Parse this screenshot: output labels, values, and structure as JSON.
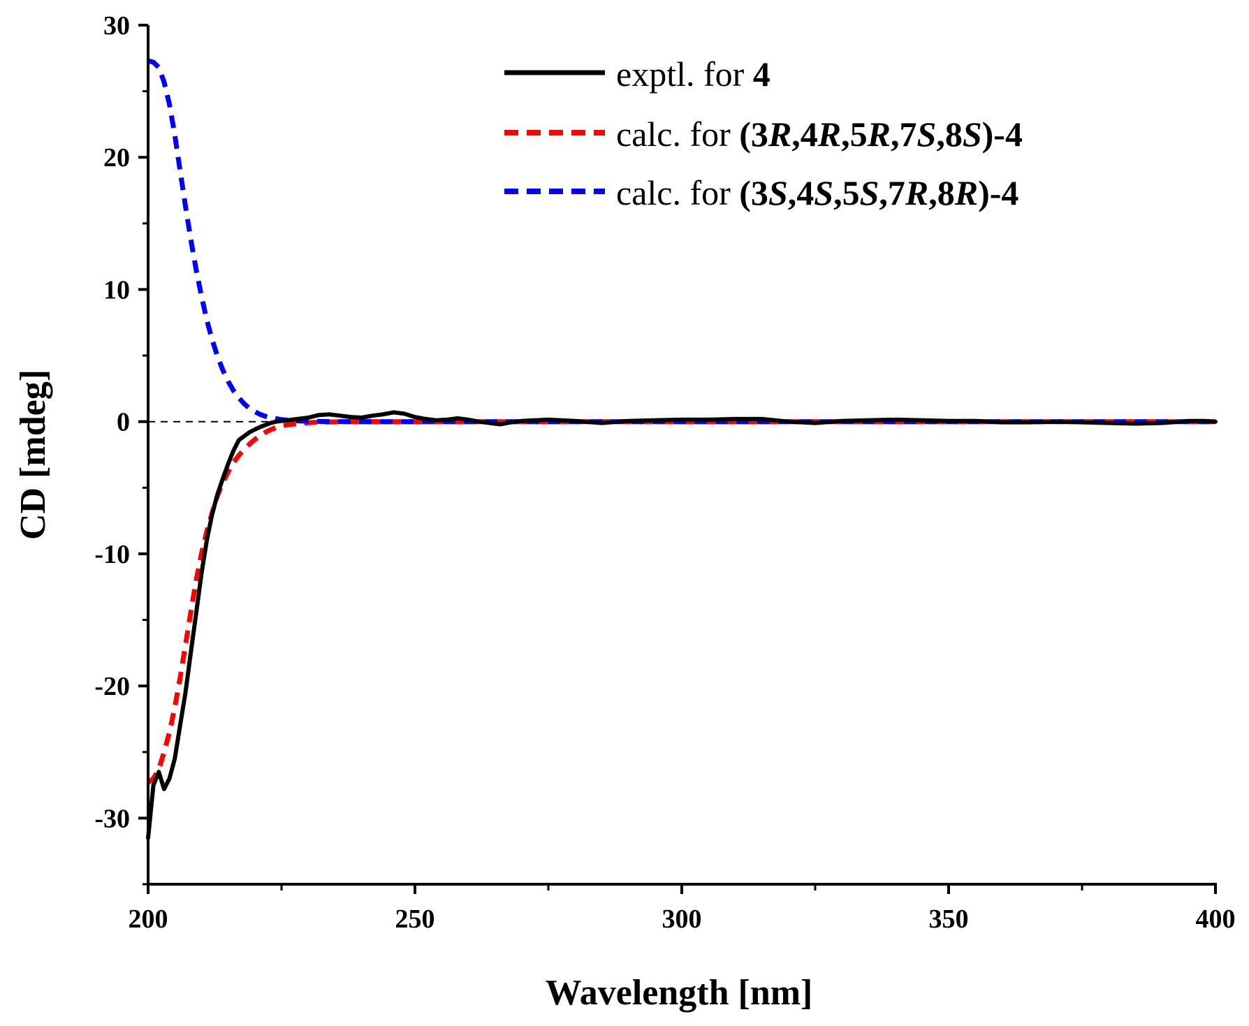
{
  "chart_data": {
    "type": "line",
    "xlabel": "Wavelength [nm]",
    "ylabel": "CD [mdeg]",
    "xlim": [
      200,
      400
    ],
    "ylim": [
      -35,
      30
    ],
    "xticks": [
      200,
      250,
      300,
      350,
      400
    ],
    "yticks": [
      30,
      20,
      10,
      0,
      -10,
      -20,
      -30
    ],
    "zero_line": "dashed",
    "legend_position": "top-right",
    "series": [
      {
        "name": "exptl. for 4",
        "legend": [
          {
            "t": "exptl. for ",
            "s": "n"
          },
          {
            "t": "4",
            "s": "b"
          }
        ],
        "color": "#000000",
        "style": "solid",
        "x": [
          200,
          201,
          202,
          203,
          204,
          205,
          206,
          207,
          208,
          209,
          210,
          211,
          212,
          213,
          214,
          215,
          216,
          217,
          218,
          219,
          220,
          221,
          222,
          223,
          224,
          225,
          226,
          228,
          230,
          232,
          234,
          236,
          238,
          240,
          242,
          244,
          246,
          248,
          250,
          252,
          254,
          256,
          258,
          260,
          262,
          264,
          266,
          268,
          270,
          275,
          280,
          285,
          290,
          295,
          300,
          305,
          310,
          315,
          320,
          325,
          330,
          335,
          340,
          345,
          350,
          355,
          360,
          365,
          370,
          375,
          380,
          385,
          390,
          395,
          398,
          400
        ],
        "y": [
          -31.5,
          -27.5,
          -26.5,
          -27.8,
          -27.0,
          -25.5,
          -23.0,
          -20.5,
          -17.5,
          -14.5,
          -11.5,
          -9.0,
          -7.0,
          -5.5,
          -4.3,
          -3.2,
          -2.2,
          -1.4,
          -1.1,
          -0.8,
          -0.6,
          -0.4,
          -0.25,
          -0.1,
          0.0,
          0.05,
          0.1,
          0.2,
          0.3,
          0.5,
          0.55,
          0.45,
          0.35,
          0.3,
          0.45,
          0.55,
          0.7,
          0.6,
          0.35,
          0.2,
          0.1,
          0.15,
          0.25,
          0.15,
          0.0,
          -0.1,
          -0.2,
          -0.05,
          0.05,
          0.15,
          0.05,
          -0.1,
          0.05,
          0.1,
          0.15,
          0.15,
          0.2,
          0.2,
          0.0,
          -0.1,
          0.05,
          0.1,
          0.15,
          0.1,
          0.05,
          0.05,
          -0.05,
          -0.05,
          0.0,
          -0.05,
          -0.1,
          -0.15,
          -0.1,
          0.05,
          0.05,
          0.0
        ]
      },
      {
        "name": "calc. for (3R,4R,5R,7S,8S)-4",
        "legend": [
          {
            "t": "calc. for ",
            "s": "n"
          },
          {
            "t": "(3",
            "s": "b"
          },
          {
            "t": "R",
            "s": "bi"
          },
          {
            "t": ",4",
            "s": "b"
          },
          {
            "t": "R",
            "s": "bi"
          },
          {
            "t": ",5",
            "s": "b"
          },
          {
            "t": "R",
            "s": "bi"
          },
          {
            "t": ",7",
            "s": "b"
          },
          {
            "t": "S",
            "s": "bi"
          },
          {
            "t": ",8",
            "s": "b"
          },
          {
            "t": "S",
            "s": "bi"
          },
          {
            "t": ")-4",
            "s": "b"
          }
        ],
        "color": "#ff0000",
        "style": "dashed",
        "x": [
          200,
          201,
          202,
          203,
          204,
          205,
          206,
          207,
          208,
          209,
          210,
          211,
          212,
          213,
          214,
          215,
          216,
          217,
          218,
          219,
          220,
          221,
          222,
          223,
          224,
          225,
          226,
          228,
          230,
          232,
          234,
          236,
          238,
          240,
          245,
          250,
          260,
          280,
          300,
          350,
          400
        ],
        "y": [
          -27.3,
          -27.0,
          -26.3,
          -25.0,
          -23.5,
          -21.6,
          -19.4,
          -16.9,
          -14.4,
          -12.0,
          -10.0,
          -8.3,
          -6.9,
          -5.6,
          -4.6,
          -3.8,
          -3.1,
          -2.55,
          -2.1,
          -1.7,
          -1.35,
          -1.05,
          -0.8,
          -0.6,
          -0.45,
          -0.33,
          -0.25,
          -0.14,
          -0.08,
          -0.04,
          -0.02,
          -0.01,
          0.0,
          0.0,
          0.0,
          0.0,
          0.0,
          0.0,
          0.0,
          0.0,
          0.0
        ]
      },
      {
        "name": "calc. for (3S,4S,5S,7R,8R)-4",
        "legend": [
          {
            "t": "calc. for ",
            "s": "n"
          },
          {
            "t": "(3",
            "s": "b"
          },
          {
            "t": "S",
            "s": "bi"
          },
          {
            "t": ",4",
            "s": "b"
          },
          {
            "t": "S",
            "s": "bi"
          },
          {
            "t": ",5",
            "s": "b"
          },
          {
            "t": "S",
            "s": "bi"
          },
          {
            "t": ",7",
            "s": "b"
          },
          {
            "t": "R",
            "s": "bi"
          },
          {
            "t": ",8",
            "s": "b"
          },
          {
            "t": "R",
            "s": "bi"
          },
          {
            "t": ")-4",
            "s": "b"
          }
        ],
        "color": "#0000ff",
        "style": "dashed",
        "x": [
          200,
          201,
          202,
          203,
          204,
          205,
          206,
          207,
          208,
          209,
          210,
          211,
          212,
          213,
          214,
          215,
          216,
          217,
          218,
          219,
          220,
          221,
          222,
          223,
          224,
          225,
          226,
          227,
          228,
          230,
          232,
          234,
          236,
          238,
          240,
          245,
          250,
          260,
          280,
          300,
          350,
          400
        ],
        "y": [
          27.3,
          27.2,
          26.8,
          25.7,
          24.0,
          21.7,
          19.0,
          16.3,
          13.8,
          11.5,
          9.5,
          7.7,
          6.2,
          4.95,
          3.9,
          3.05,
          2.35,
          1.8,
          1.35,
          1.0,
          0.75,
          0.55,
          0.4,
          0.3,
          0.22,
          0.16,
          0.12,
          0.09,
          0.06,
          0.03,
          0.015,
          0.007,
          0.003,
          0.0,
          0.0,
          0.0,
          0.0,
          0.0,
          0.0,
          0.0,
          0.0,
          0.0
        ]
      }
    ]
  }
}
